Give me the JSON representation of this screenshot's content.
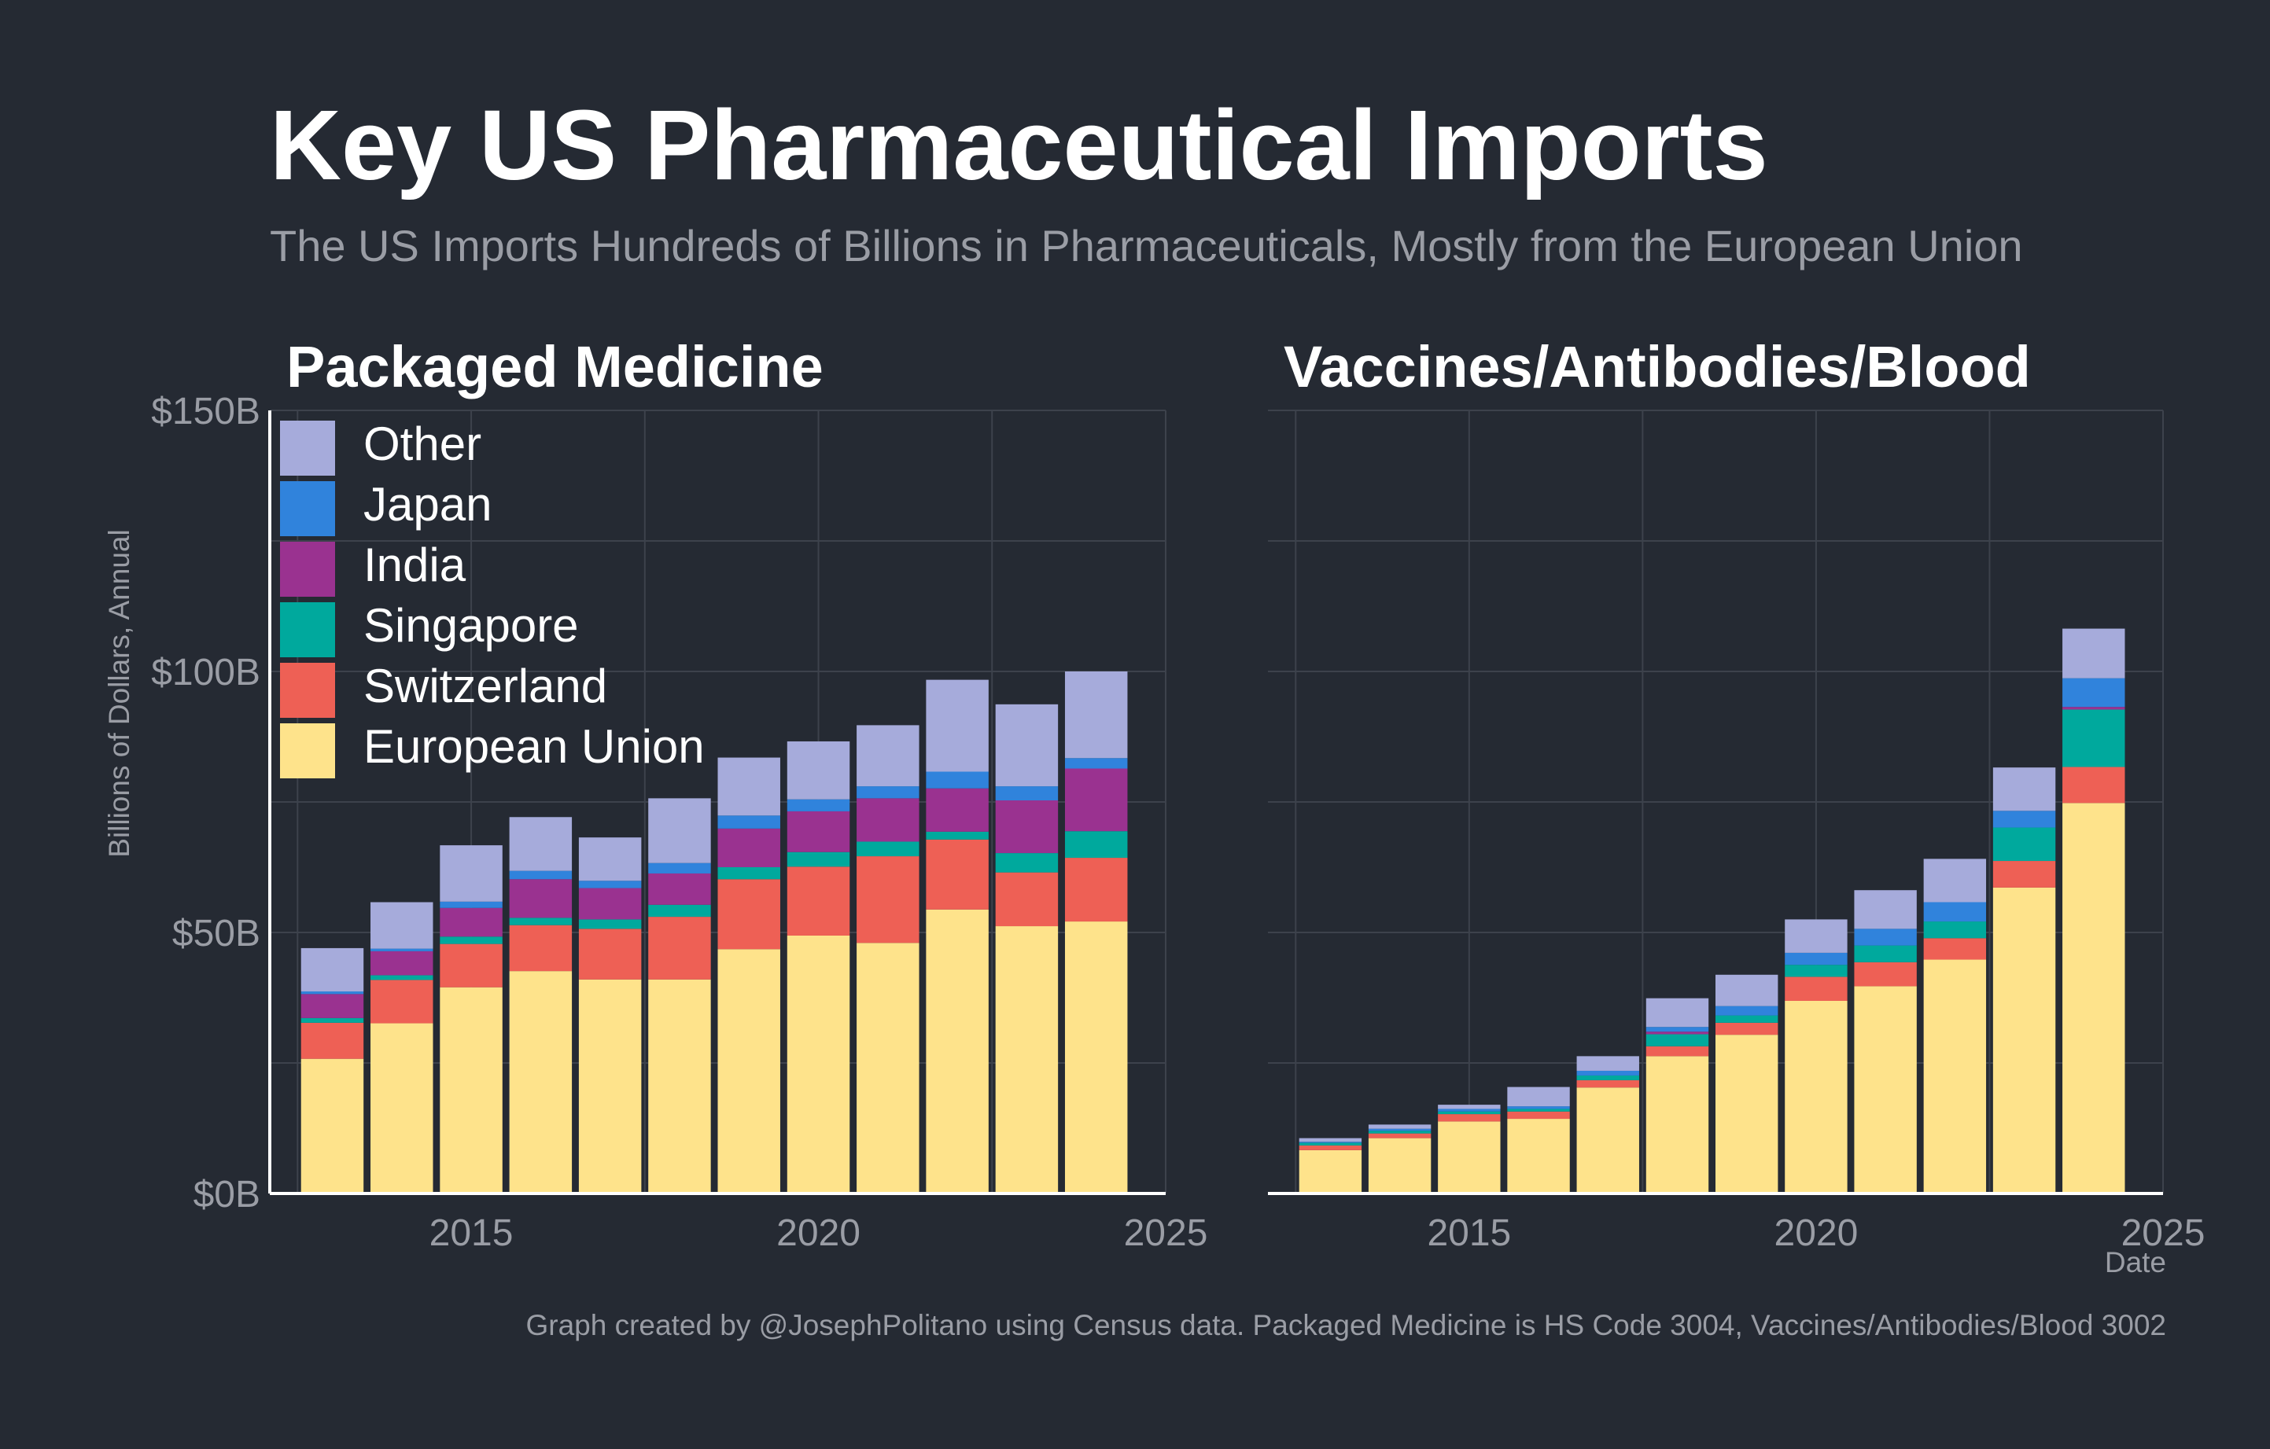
{
  "title": "Key US Pharmaceutical Imports",
  "subtitle": "The US Imports Hundreds of Billions in Pharmaceuticals, Mostly from the European Union",
  "caption": "Graph created by @JosephPolitano using Census data. Packaged Medicine is HS Code 3004, Vaccines/Antibodies/Blood 3002",
  "colors": {
    "background": "#252a33",
    "grid": "#3d424c",
    "axis": "#ffffff",
    "muted_text": "#9a9da5",
    "European Union": "#fee38b",
    "Switzerland": "#ee6055",
    "Singapore": "#00a99d",
    "India": "#9a3290",
    "Japan": "#3083dc",
    "Other": "#a6abdb"
  },
  "chart_data": [
    {
      "type": "bar",
      "stacked": true,
      "title": "Packaged Medicine",
      "xlabel": "",
      "ylabel": "Billions of Dollars, Annual",
      "ylim": [
        0,
        150
      ],
      "xlim": [
        2012.1,
        2025
      ],
      "yticks": [
        0,
        50,
        100,
        150
      ],
      "ytick_labels": [
        "$0B",
        "$50B",
        "$100B",
        "$150B"
      ],
      "xticks": [
        2015,
        2020,
        2025
      ],
      "xtick_labels": [
        "2015",
        "2020",
        "2025"
      ],
      "grid": true,
      "legend_position": "top-left",
      "legend_order": [
        "Other",
        "Japan",
        "India",
        "Singapore",
        "Switzerland",
        "European Union"
      ],
      "x": [
        2013,
        2014,
        2015,
        2016,
        2017,
        2018,
        2019,
        2020,
        2021,
        2022,
        2023,
        2024
      ],
      "series": [
        {
          "name": "European Union",
          "values": [
            25.8,
            32.6,
            39.5,
            42.6,
            41.0,
            41.0,
            46.8,
            49.4,
            48.0,
            54.4,
            51.2,
            52.1
          ]
        },
        {
          "name": "Switzerland",
          "values": [
            6.9,
            8.3,
            8.3,
            8.8,
            9.7,
            12.0,
            13.4,
            13.2,
            16.6,
            13.4,
            10.3,
            12.2
          ]
        },
        {
          "name": "Singapore",
          "values": [
            0.9,
            0.9,
            1.4,
            1.4,
            1.8,
            2.3,
            2.3,
            2.8,
            2.8,
            1.5,
            3.7,
            5.1
          ]
        },
        {
          "name": "India",
          "values": [
            4.6,
            4.6,
            5.5,
            7.4,
            6.0,
            6.0,
            7.4,
            7.8,
            8.3,
            8.3,
            10.1,
            12.0
          ]
        },
        {
          "name": "Japan",
          "values": [
            0.5,
            0.5,
            1.2,
            1.6,
            1.4,
            2.0,
            2.5,
            2.3,
            2.3,
            3.2,
            2.7,
            2.0
          ]
        },
        {
          "name": "Other",
          "values": [
            8.3,
            8.9,
            10.8,
            10.3,
            8.3,
            12.4,
            11.1,
            11.1,
            11.7,
            17.6,
            15.7,
            16.6
          ]
        }
      ]
    },
    {
      "type": "bar",
      "stacked": true,
      "title": "Vaccines/Antibodies/Blood",
      "xlabel": "Date",
      "ylabel": "",
      "ylim": [
        0,
        150
      ],
      "xlim": [
        2012.1,
        2025
      ],
      "yticks": [
        0,
        50,
        100,
        150
      ],
      "xticks": [
        2015,
        2020,
        2025
      ],
      "xtick_labels": [
        "2015",
        "2020",
        "2025"
      ],
      "grid": true,
      "x": [
        2013,
        2014,
        2015,
        2016,
        2017,
        2018,
        2019,
        2020,
        2021,
        2022,
        2023,
        2024
      ],
      "series": [
        {
          "name": "European Union",
          "values": [
            8.3,
            10.6,
            13.8,
            14.3,
            20.3,
            26.3,
            30.4,
            36.9,
            39.7,
            44.8,
            58.6,
            74.8
          ]
        },
        {
          "name": "Switzerland",
          "values": [
            0.9,
            0.9,
            1.4,
            1.4,
            1.4,
            1.9,
            2.3,
            4.6,
            4.6,
            4.1,
            5.1,
            6.9
          ]
        },
        {
          "name": "Singapore",
          "values": [
            0.5,
            0.5,
            0.5,
            0.5,
            0.9,
            2.3,
            1.4,
            2.3,
            3.2,
            3.2,
            6.4,
            11.0
          ]
        },
        {
          "name": "India",
          "values": [
            0.0,
            0.0,
            0.0,
            0.0,
            0.0,
            0.5,
            0.0,
            0.0,
            0.0,
            0.0,
            0.0,
            0.5
          ]
        },
        {
          "name": "Japan",
          "values": [
            0.2,
            0.4,
            0.5,
            0.5,
            0.9,
            0.9,
            1.8,
            2.3,
            3.2,
            3.7,
            3.2,
            5.5
          ]
        },
        {
          "name": "Other",
          "values": [
            0.7,
            0.8,
            0.8,
            3.7,
            2.8,
            5.5,
            6.0,
            6.4,
            7.4,
            8.3,
            8.3,
            9.5
          ]
        }
      ]
    }
  ]
}
